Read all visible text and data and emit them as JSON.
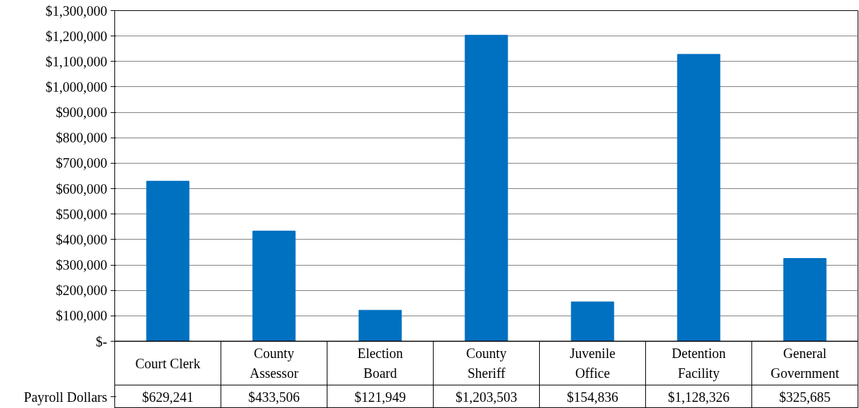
{
  "chart_data": {
    "type": "bar",
    "categories": [
      "Court Clerk",
      "County Assessor",
      "Election Board",
      "County Sheriff",
      "Juvenile Office",
      "Detention Facility",
      "General Government"
    ],
    "series": [
      {
        "name": "Payroll Dollars",
        "color": "#0070c0",
        "values": [
          629241,
          433506,
          121949,
          1203503,
          154836,
          1128326,
          325685
        ]
      }
    ],
    "ylim": [
      0,
      1300000
    ],
    "yticks": [
      {
        "value": 0,
        "label": "$-"
      },
      {
        "value": 100000,
        "label": "$100,000"
      },
      {
        "value": 200000,
        "label": "$200,000"
      },
      {
        "value": 300000,
        "label": "$300,000"
      },
      {
        "value": 400000,
        "label": "$400,000"
      },
      {
        "value": 500000,
        "label": "$500,000"
      },
      {
        "value": 600000,
        "label": "$600,000"
      },
      {
        "value": 700000,
        "label": "$700,000"
      },
      {
        "value": 800000,
        "label": "$800,000"
      },
      {
        "value": 900000,
        "label": "$900,000"
      },
      {
        "value": 1000000,
        "label": "$1,000,000"
      },
      {
        "value": 1100000,
        "label": "$1,100,000"
      },
      {
        "value": 1200000,
        "label": "$1,200,000"
      },
      {
        "value": 1300000,
        "label": "$1,300,000"
      }
    ],
    "grid": "y",
    "value_labels": [
      "$629,241",
      "$433,506",
      "$121,949",
      "$1,203,503",
      "$154,836",
      "$1,128,326",
      "$325,685"
    ]
  }
}
